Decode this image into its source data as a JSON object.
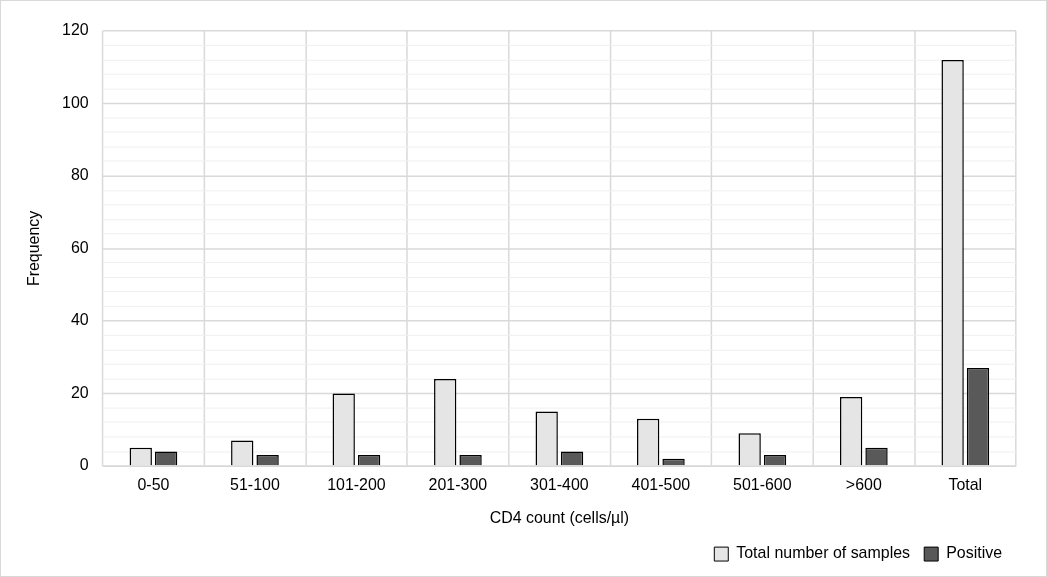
{
  "chart_data": {
    "type": "bar",
    "xlabel": "CD4 count (cells/µl)",
    "ylabel": "Frequency",
    "categories": [
      "0-50",
      "51-100",
      "101-200",
      "201-300",
      "301-400",
      "401-500",
      "501-600",
      ">600",
      "Total"
    ],
    "series": [
      {
        "name": "Total number of samples",
        "color": "#e5e5e5",
        "values": [
          5,
          7,
          20,
          24,
          15,
          13,
          9,
          19,
          112
        ]
      },
      {
        "name": "Positive",
        "color": "#595959",
        "values": [
          4,
          3,
          3,
          3,
          4,
          2,
          3,
          5,
          27
        ]
      }
    ],
    "ylim": [
      0,
      120
    ],
    "yticks": [
      0,
      {
        "value": 4,
        "label": null
      },
      {
        "value": 8,
        "label": null
      },
      {
        "value": 12,
        "label": null
      },
      {
        "value": 16,
        "label": null
      },
      20,
      {
        "value": 24,
        "label": null
      },
      {
        "value": 28,
        "label": null
      },
      {
        "value": 32,
        "label": null
      },
      {
        "value": 36,
        "label": null
      },
      40,
      {
        "value": 44,
        "label": null
      },
      {
        "value": 48,
        "label": null
      },
      {
        "value": 52,
        "label": null
      },
      {
        "value": 56,
        "label": null
      },
      60,
      {
        "value": 64,
        "label": null
      },
      {
        "value": 68,
        "label": null
      },
      {
        "value": 72,
        "label": null
      },
      {
        "value": 76,
        "label": null
      },
      80,
      {
        "value": 84,
        "label": null
      },
      {
        "value": 88,
        "label": null
      },
      {
        "value": 92,
        "label": null
      },
      {
        "value": 96,
        "label": null
      },
      100,
      {
        "value": 104,
        "label": null
      },
      {
        "value": 108,
        "label": null
      },
      {
        "value": 112,
        "label": null
      },
      {
        "value": 116,
        "label": null
      },
      120
    ],
    "grid": true,
    "legend": "bottom right"
  }
}
